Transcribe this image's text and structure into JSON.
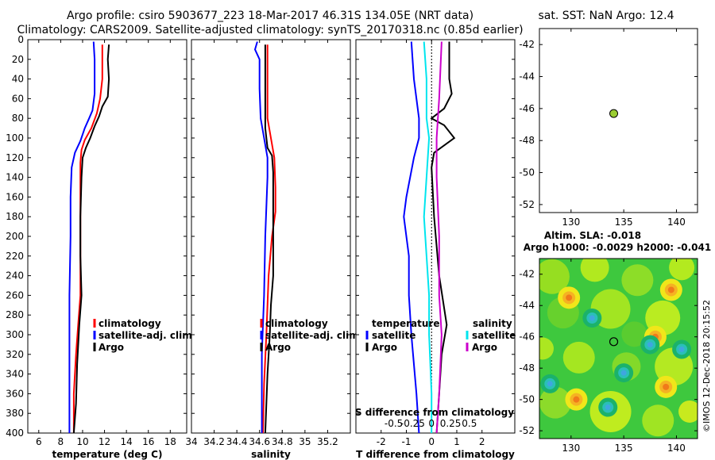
{
  "title_line1": "Argo profile: csiro 5903677_223 18-Mar-2017 46.31S 134.05E (NRT data)",
  "title_line2": "Climatology: CARS2009. Satellite-adjusted climatology: synTS_20170318.nc (0.85d earlier)",
  "colors": {
    "climatology": "#ff0000",
    "satellite": "#0000ff",
    "argo": "#000000",
    "sat_salinity": "#00e5ee",
    "argo_salinity": "#cc00cc",
    "marker": "#9acd32"
  },
  "chart_data": [
    {
      "id": "temperature",
      "type": "line",
      "xlabel": "temperature (deg C)",
      "ylabel": "",
      "xlim": [
        5,
        19.5
      ],
      "ylim": [
        400,
        0
      ],
      "xticks": [
        "6",
        "8",
        "10",
        "12",
        "14",
        "16",
        "18"
      ],
      "xtick_values": [
        6,
        8,
        10,
        12,
        14,
        16,
        18
      ],
      "yticks": [
        "0",
        "20",
        "40",
        "60",
        "80",
        "100",
        "120",
        "140",
        "160",
        "180",
        "200",
        "220",
        "240",
        "260",
        "280",
        "300",
        "320",
        "340",
        "360",
        "380",
        "400"
      ],
      "ytick_values": [
        0,
        20,
        40,
        60,
        80,
        100,
        120,
        140,
        160,
        180,
        200,
        220,
        240,
        260,
        280,
        300,
        320,
        340,
        360,
        380,
        400
      ],
      "legend": [
        "climatology",
        "satellite-adj. clim.",
        "Argo"
      ],
      "series": [
        {
          "name": "climatology",
          "color_key": "climatology",
          "points": [
            [
              11.8,
              5
            ],
            [
              11.8,
              40
            ],
            [
              11.6,
              60
            ],
            [
              11.3,
              75
            ],
            [
              10.8,
              90
            ],
            [
              10.2,
              102
            ],
            [
              9.9,
              112
            ],
            [
              9.8,
              125
            ],
            [
              9.8,
              160
            ],
            [
              9.8,
              200
            ],
            [
              9.8,
              260
            ],
            [
              9.6,
              290
            ],
            [
              9.4,
              320
            ],
            [
              9.2,
              360
            ],
            [
              9.2,
              400
            ]
          ]
        },
        {
          "name": "satellite-adj. clim.",
          "color_key": "satellite",
          "points": [
            [
              11.0,
              2
            ],
            [
              11.1,
              20
            ],
            [
              11.1,
              55
            ],
            [
              10.9,
              72
            ],
            [
              10.6,
              80
            ],
            [
              10.2,
              90
            ],
            [
              9.8,
              103
            ],
            [
              9.3,
              115
            ],
            [
              9.0,
              130
            ],
            [
              8.9,
              160
            ],
            [
              8.9,
              200
            ],
            [
              8.8,
              260
            ],
            [
              8.8,
              320
            ],
            [
              8.8,
              400
            ]
          ]
        },
        {
          "name": "Argo",
          "color_key": "argo",
          "points": [
            [
              12.4,
              5
            ],
            [
              12.3,
              20
            ],
            [
              12.4,
              40
            ],
            [
              12.3,
              58
            ],
            [
              11.8,
              68
            ],
            [
              11.5,
              78
            ],
            [
              11.1,
              88
            ],
            [
              10.7,
              100
            ],
            [
              10.3,
              110
            ],
            [
              10.0,
              120
            ],
            [
              9.9,
              140
            ],
            [
              9.8,
              180
            ],
            [
              9.8,
              220
            ],
            [
              9.9,
              260
            ],
            [
              9.7,
              290
            ],
            [
              9.5,
              330
            ],
            [
              9.4,
              370
            ],
            [
              9.2,
              400
            ]
          ]
        }
      ]
    },
    {
      "id": "salinity",
      "type": "line",
      "xlabel": "salinity",
      "ylabel": "",
      "xlim": [
        34.0,
        35.4
      ],
      "ylim": [
        400,
        0
      ],
      "xticks": [
        "34",
        "34.2",
        "34.4",
        "34.6",
        "34.8",
        "35",
        "35.2"
      ],
      "xtick_values": [
        34.0,
        34.2,
        34.4,
        34.6,
        34.8,
        35.0,
        35.2
      ],
      "legend": [
        "climatology",
        "satellite-adj. clim.",
        "Argo"
      ],
      "series": [
        {
          "name": "climatology",
          "color_key": "climatology",
          "points": [
            [
              34.67,
              5
            ],
            [
              34.67,
              60
            ],
            [
              34.67,
              80
            ],
            [
              34.7,
              100
            ],
            [
              34.73,
              120
            ],
            [
              34.74,
              150
            ],
            [
              34.74,
              175
            ],
            [
              34.71,
              200
            ],
            [
              34.68,
              240
            ],
            [
              34.66,
              300
            ],
            [
              34.64,
              350
            ],
            [
              34.63,
              400
            ]
          ]
        },
        {
          "name": "satellite-adj. clim.",
          "color_key": "satellite",
          "points": [
            [
              34.58,
              2
            ],
            [
              34.56,
              10
            ],
            [
              34.6,
              20
            ],
            [
              34.6,
              50
            ],
            [
              34.61,
              80
            ],
            [
              34.64,
              100
            ],
            [
              34.67,
              120
            ],
            [
              34.67,
              140
            ],
            [
              34.66,
              170
            ],
            [
              34.65,
              200
            ],
            [
              34.64,
              260
            ],
            [
              34.62,
              320
            ],
            [
              34.62,
              400
            ]
          ]
        },
        {
          "name": "Argo",
          "color_key": "argo",
          "points": [
            [
              34.65,
              5
            ],
            [
              34.65,
              90
            ],
            [
              34.67,
              110
            ],
            [
              34.71,
              118
            ],
            [
              34.72,
              135
            ],
            [
              34.72,
              160
            ],
            [
              34.72,
              200
            ],
            [
              34.72,
              240
            ],
            [
              34.7,
              270
            ],
            [
              34.69,
              300
            ],
            [
              34.67,
              340
            ],
            [
              34.65,
              400
            ]
          ]
        }
      ]
    },
    {
      "id": "difference",
      "type": "line",
      "xlabel": "T difference from climatology",
      "top_xlabel": "S difference from climatology",
      "xlim": [
        -3,
        3.3
      ],
      "ylim": [
        400,
        0
      ],
      "xticks": [
        "-2",
        "-1",
        "0",
        "1",
        "2"
      ],
      "xtick_values": [
        -2,
        -1,
        0,
        1,
        2
      ],
      "top_ticks": [
        "-0.5",
        "-0.25",
        "0",
        "0.25",
        "0.5"
      ],
      "top_tick_values": [
        -1.5,
        -0.75,
        0,
        0.75,
        1.5
      ],
      "legend_temperature": [
        "temperature",
        "satellite",
        "Argo"
      ],
      "legend_salinity": [
        "salinity",
        "satellite",
        "Argo"
      ],
      "series": [
        {
          "name": "temperature satellite",
          "color_key": "satellite",
          "points": [
            [
              -0.8,
              2
            ],
            [
              -0.7,
              40
            ],
            [
              -0.5,
              80
            ],
            [
              -0.5,
              100
            ],
            [
              -0.7,
              120
            ],
            [
              -1.0,
              160
            ],
            [
              -1.1,
              180
            ],
            [
              -0.9,
              220
            ],
            [
              -0.9,
              260
            ],
            [
              -0.8,
              300
            ],
            [
              -0.6,
              360
            ],
            [
              -0.5,
              400
            ]
          ]
        },
        {
          "name": "temperature Argo",
          "color_key": "argo",
          "points": [
            [
              0.7,
              2
            ],
            [
              0.7,
              40
            ],
            [
              0.8,
              55
            ],
            [
              0.5,
              70
            ],
            [
              0.0,
              80
            ],
            [
              0.5,
              87
            ],
            [
              0.9,
              100
            ],
            [
              0.1,
              115
            ],
            [
              0.0,
              130
            ],
            [
              0.1,
              180
            ],
            [
              0.3,
              240
            ],
            [
              0.6,
              290
            ],
            [
              0.4,
              320
            ],
            [
              0.3,
              360
            ],
            [
              0.2,
              400
            ]
          ]
        },
        {
          "name": "salinity satellite",
          "color_key": "sat_salinity",
          "points": [
            [
              -0.3,
              2
            ],
            [
              -0.2,
              40
            ],
            [
              -0.2,
              80
            ],
            [
              -0.1,
              100
            ],
            [
              -0.2,
              140
            ],
            [
              -0.3,
              180
            ],
            [
              -0.2,
              220
            ],
            [
              -0.1,
              260
            ],
            [
              -0.1,
              300
            ],
            [
              0.0,
              360
            ],
            [
              0.0,
              400
            ]
          ]
        },
        {
          "name": "salinity Argo",
          "color_key": "argo_salinity",
          "points": [
            [
              0.4,
              2
            ],
            [
              0.3,
              60
            ],
            [
              0.2,
              100
            ],
            [
              0.2,
              140
            ],
            [
              0.3,
              200
            ],
            [
              0.3,
              260
            ],
            [
              0.4,
              300
            ],
            [
              0.3,
              360
            ],
            [
              0.2,
              400
            ]
          ]
        }
      ]
    },
    {
      "id": "sst_map",
      "type": "scatter",
      "title": "sat. SST: NaN Argo: 12.4",
      "xlim": [
        127,
        142
      ],
      "ylim": [
        -52.5,
        -41
      ],
      "xticks": [
        "130",
        "135",
        "140"
      ],
      "xtick_values": [
        130,
        135,
        140
      ],
      "yticks": [
        "-42",
        "-44",
        "-46",
        "-48",
        "-50",
        "-52"
      ],
      "ytick_values": [
        -42,
        -44,
        -46,
        -48,
        -50,
        -52
      ],
      "marker": {
        "lon": 134.05,
        "lat": -46.31
      }
    },
    {
      "id": "sla_map",
      "type": "heatmap",
      "title_line1": "Altim. SLA: -0.018",
      "title_line2": "Argo h1000: -0.0029 h2000: -0.041",
      "xlim": [
        127,
        142
      ],
      "ylim": [
        -52.5,
        -41
      ],
      "xticks": [
        "130",
        "135",
        "140"
      ],
      "xtick_values": [
        130,
        135,
        140
      ],
      "yticks": [
        "-42",
        "-44",
        "-46",
        "-48",
        "-50",
        "-52"
      ],
      "ytick_values": [
        -42,
        -44,
        -46,
        -48,
        -50,
        -52
      ],
      "marker": {
        "lon": 134.05,
        "lat": -46.31
      },
      "features": [
        {
          "lon": 139.5,
          "lat": -43.0,
          "kind": "high"
        },
        {
          "lon": 129.8,
          "lat": -43.5,
          "kind": "high"
        },
        {
          "lon": 138.0,
          "lat": -46.0,
          "kind": "high"
        },
        {
          "lon": 130.5,
          "lat": -50.0,
          "kind": "high"
        },
        {
          "lon": 139.0,
          "lat": -49.2,
          "kind": "high"
        },
        {
          "lon": 137.5,
          "lat": -46.5,
          "kind": "low"
        },
        {
          "lon": 135.0,
          "lat": -48.3,
          "kind": "low"
        },
        {
          "lon": 128.0,
          "lat": -49.0,
          "kind": "low"
        },
        {
          "lon": 133.5,
          "lat": -50.5,
          "kind": "low"
        },
        {
          "lon": 140.5,
          "lat": -46.8,
          "kind": "low"
        },
        {
          "lon": 132.0,
          "lat": -44.8,
          "kind": "low"
        }
      ]
    }
  ],
  "stamp": "©IMOS 12-Dec-2018 20:15:52"
}
